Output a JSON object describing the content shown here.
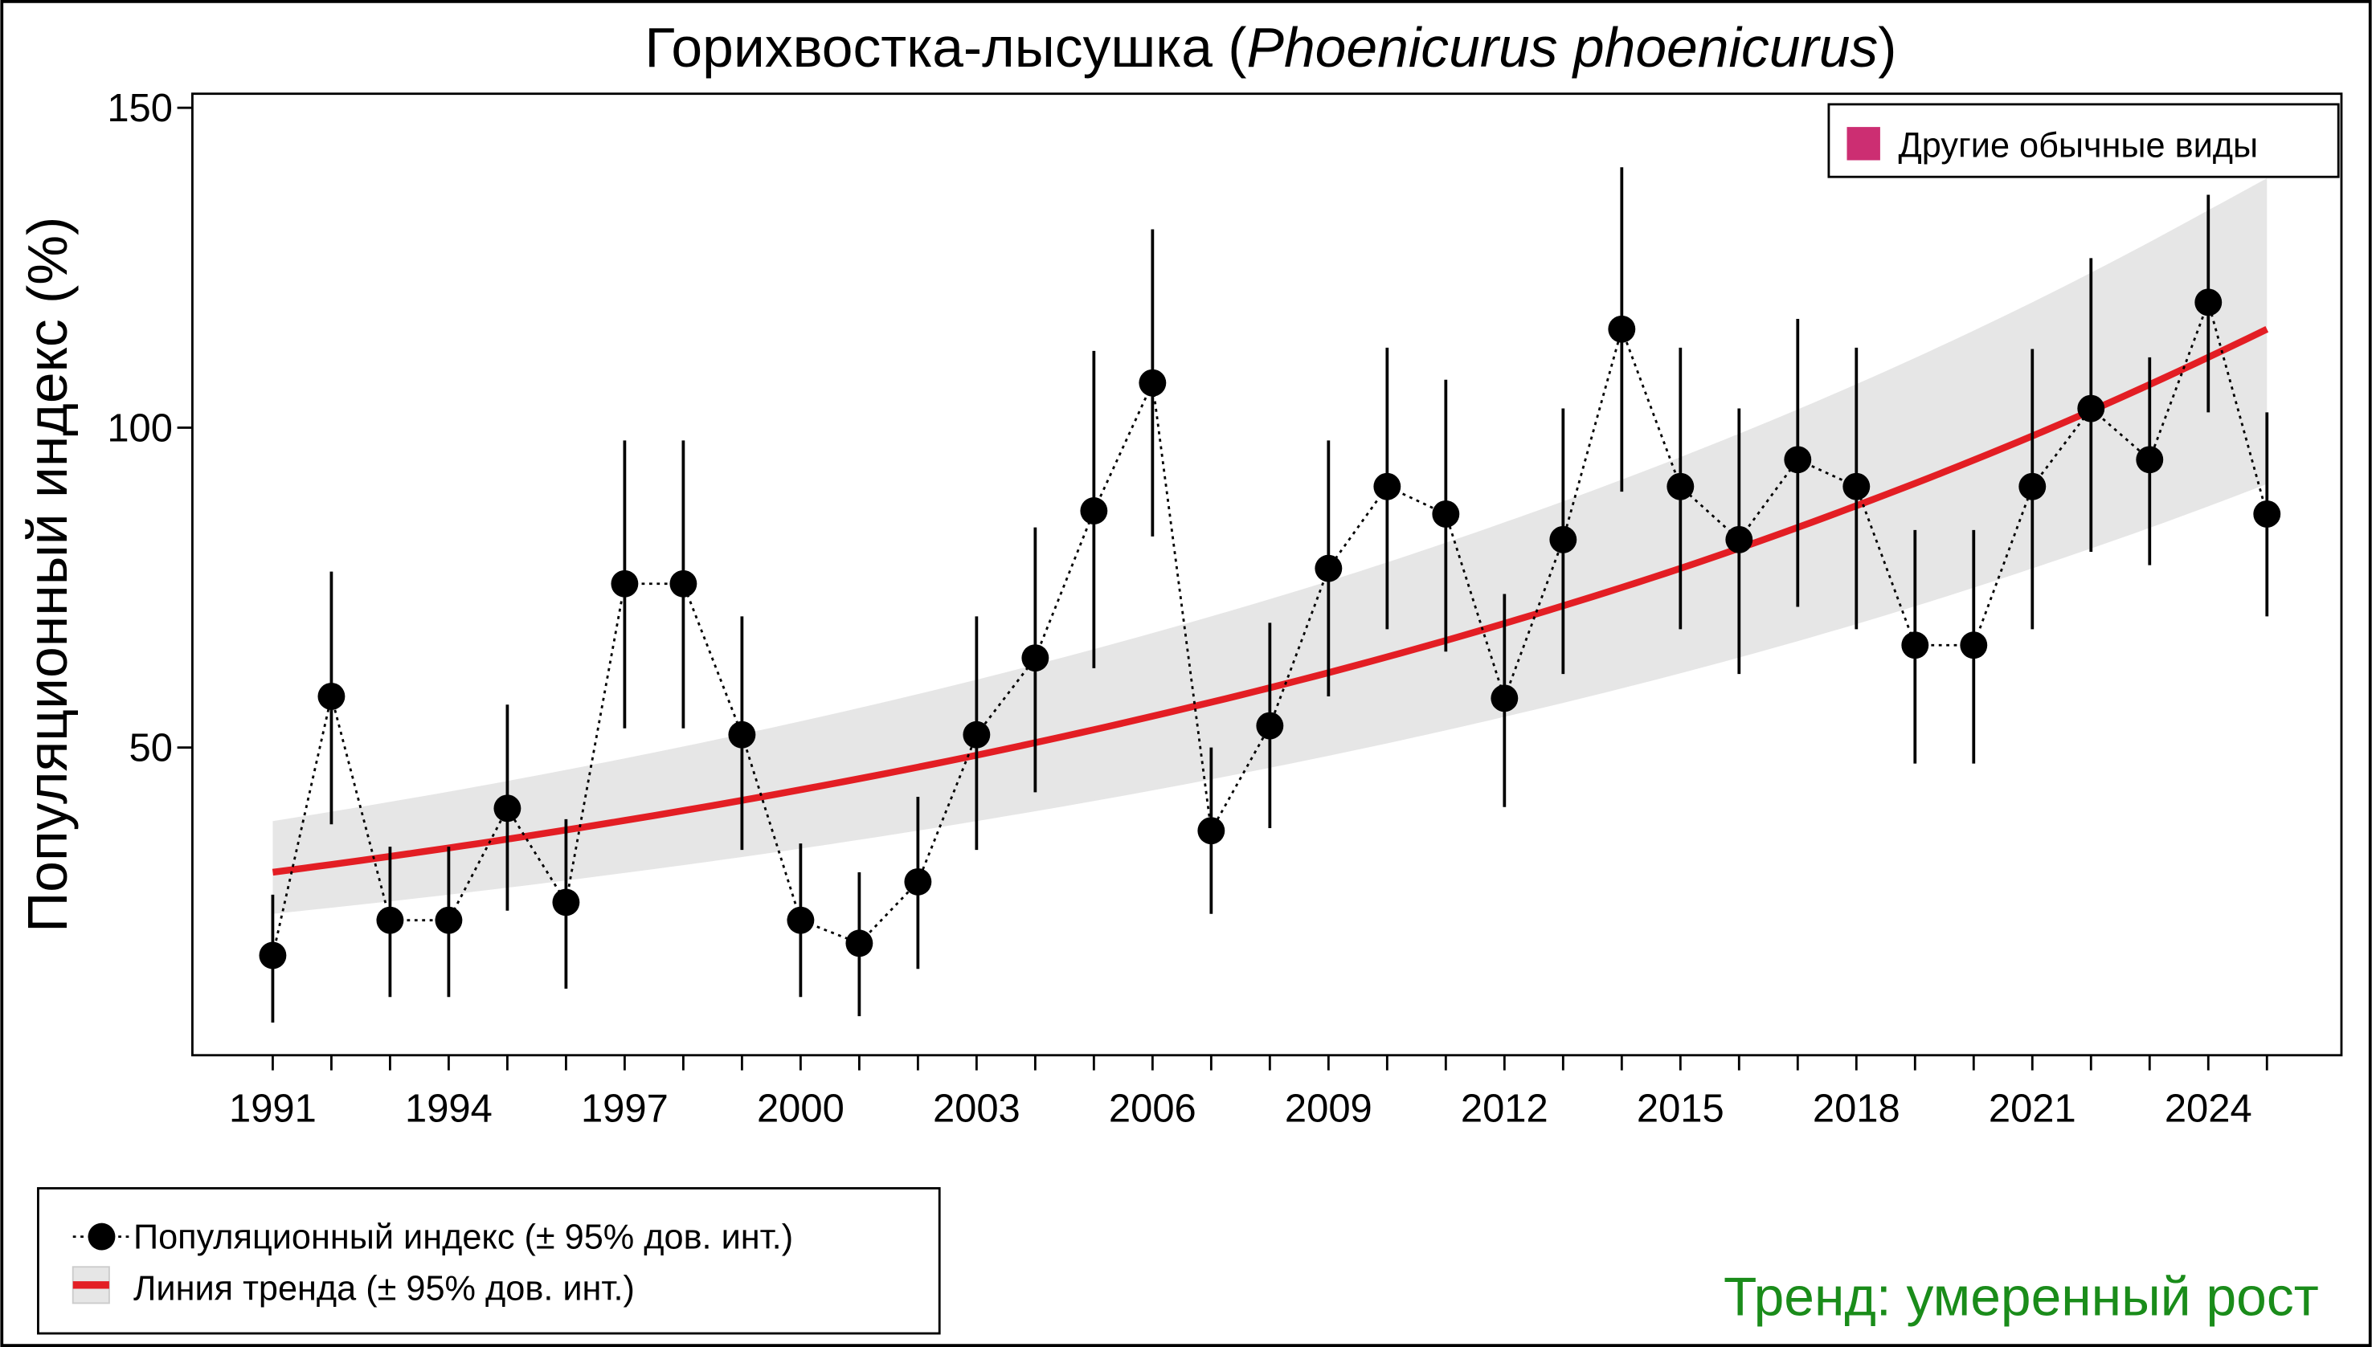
{
  "chart_data": {
    "type": "line",
    "title": "Горихвостка-лысушка (",
    "title_italic": "Phoenicurus phoenicurus",
    "title_end": ")",
    "xlabel": "",
    "ylabel": "Популяционный индекс (%)",
    "xlim": [
      1989.63,
      2026.27
    ],
    "ylim": [
      1.9,
      152.2
    ],
    "yticks": [
      50,
      100,
      150
    ],
    "xtick_labels": [
      "1991",
      "1994",
      "1997",
      "2000",
      "2003",
      "2006",
      "2009",
      "2012",
      "2015",
      "2018",
      "2021",
      "2024"
    ],
    "grid": false,
    "index_series": {
      "name": "Популяционный индекс (± 95% дов. инт.)",
      "x": [
        1991,
        1992,
        1993,
        1994,
        1995,
        1996,
        1997,
        1998,
        1999,
        2000,
        2001,
        2002,
        2003,
        2004,
        2005,
        2006,
        2007,
        2008,
        2009,
        2010,
        2011,
        2012,
        2013,
        2014,
        2015,
        2016,
        2017,
        2018,
        2019,
        2020,
        2021,
        2022,
        2023,
        2024,
        2025
      ],
      "y": [
        17.5,
        58,
        23,
        23,
        40.5,
        25.8,
        75.6,
        75.6,
        52,
        23,
        19.4,
        29,
        52,
        64,
        87,
        107,
        37,
        53.4,
        78,
        90.8,
        86.5,
        57.7,
        82.5,
        115.4,
        90.8,
        82.5,
        95,
        90.8,
        66,
        66,
        90.8,
        103,
        95,
        119.6,
        86.5
      ],
      "lower": [
        7,
        38,
        11,
        11,
        24.5,
        12.3,
        53,
        53,
        34,
        11,
        8,
        15.4,
        34,
        43,
        62.4,
        83,
        24,
        37.4,
        58,
        68.5,
        65,
        40.7,
        61.5,
        90,
        68.5,
        61.5,
        72,
        68.5,
        47.5,
        47.5,
        68.5,
        80.6,
        78.5,
        102.4,
        70.5
      ],
      "upper": [
        27,
        77.5,
        34.5,
        34.5,
        56.7,
        38.8,
        98,
        98,
        70.5,
        35,
        30.5,
        42.3,
        70.5,
        84.4,
        112,
        131,
        50,
        69.5,
        98,
        112.5,
        107.5,
        74,
        103,
        140.7,
        112.5,
        103,
        117,
        112.5,
        84,
        84,
        112.3,
        126.5,
        111,
        136.4,
        102.4
      ],
      "color": "#000000"
    },
    "trend_series": {
      "name": "Линия тренда (± 95% дов. инт.)",
      "x": [
        1991,
        1994,
        1997,
        2000,
        2003,
        2006,
        2009,
        2012,
        2015,
        2018,
        2021,
        2024,
        2025
      ],
      "y": [
        30.5,
        34.3,
        38.6,
        43.4,
        48.8,
        54.9,
        61.7,
        69.4,
        78.0,
        87.8,
        98.7,
        111.0,
        115.4
      ],
      "lower": [
        24,
        27.0,
        30.4,
        34.2,
        38.5,
        43.3,
        48.7,
        54.8,
        61.6,
        69.3,
        78.0,
        87.7,
        91.2
      ],
      "upper": [
        38.5,
        43.1,
        48.3,
        54.1,
        60.6,
        67.9,
        76.0,
        85.2,
        95.4,
        106.8,
        119.6,
        134,
        139
      ],
      "color": "#e31e24",
      "band_color": "#e6e6e6"
    },
    "group_legend": {
      "label": "Другие обычные виды",
      "color": "#cc2e72",
      "placement": "top-right"
    },
    "trend_label": {
      "text": "Тренд: умеренный рост",
      "color": "#1a8c1a"
    }
  }
}
